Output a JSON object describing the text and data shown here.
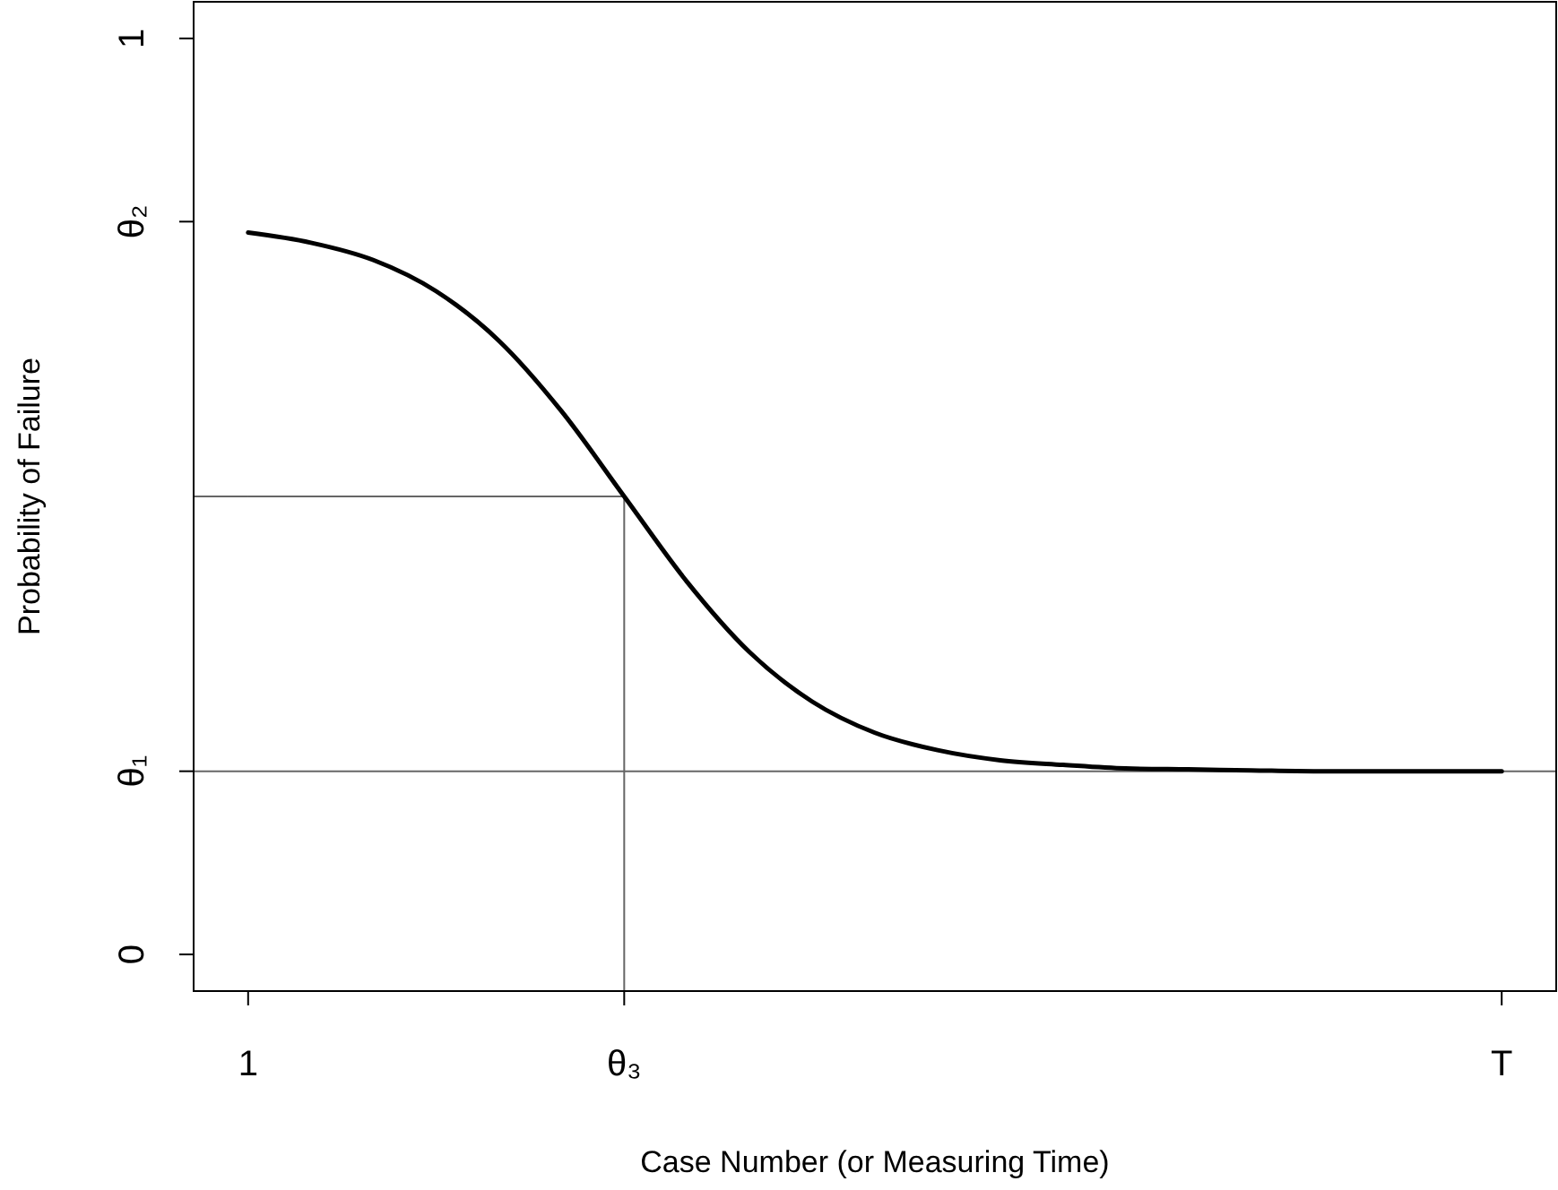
{
  "chart_data": {
    "type": "line",
    "xlabel": "Case Number (or Measuring Time)",
    "ylabel": "Probability of Failure",
    "categories": [
      "1",
      null,
      null,
      null,
      null,
      null,
      "θ₃",
      null,
      null,
      null,
      null,
      null,
      null,
      null,
      null,
      null,
      null,
      null,
      null,
      null,
      "T"
    ],
    "ylim": [
      -0.04,
      1.04
    ],
    "yticks": [
      0,
      {
        "value": 0.2,
        "label": "θ₁"
      },
      {
        "value": 0.8,
        "label": "θ₂"
      },
      1
    ],
    "marker": "none",
    "ref_lines": [
      {
        "axis": "y",
        "value": 0.2,
        "color": "#666666"
      }
    ],
    "series": [
      {
        "color": "#666666",
        "line_style": "solid",
        "values": [
          0.5,
          0.5,
          0.5,
          0.5,
          0.5,
          0.5,
          0.5,
          null,
          null,
          null,
          null,
          null,
          null,
          null,
          null,
          null,
          null,
          null,
          null,
          null,
          null
        ]
      },
      {
        "color": "#000000",
        "line_style": "solid",
        "values": [
          0.788,
          0.777,
          0.758,
          0.724,
          0.67,
          0.593,
          0.5,
          0.407,
          0.33,
          0.276,
          0.242,
          0.223,
          0.212,
          0.207,
          0.203,
          0.202,
          0.201,
          0.2,
          0.2,
          0.2,
          0.2
        ]
      }
    ]
  }
}
